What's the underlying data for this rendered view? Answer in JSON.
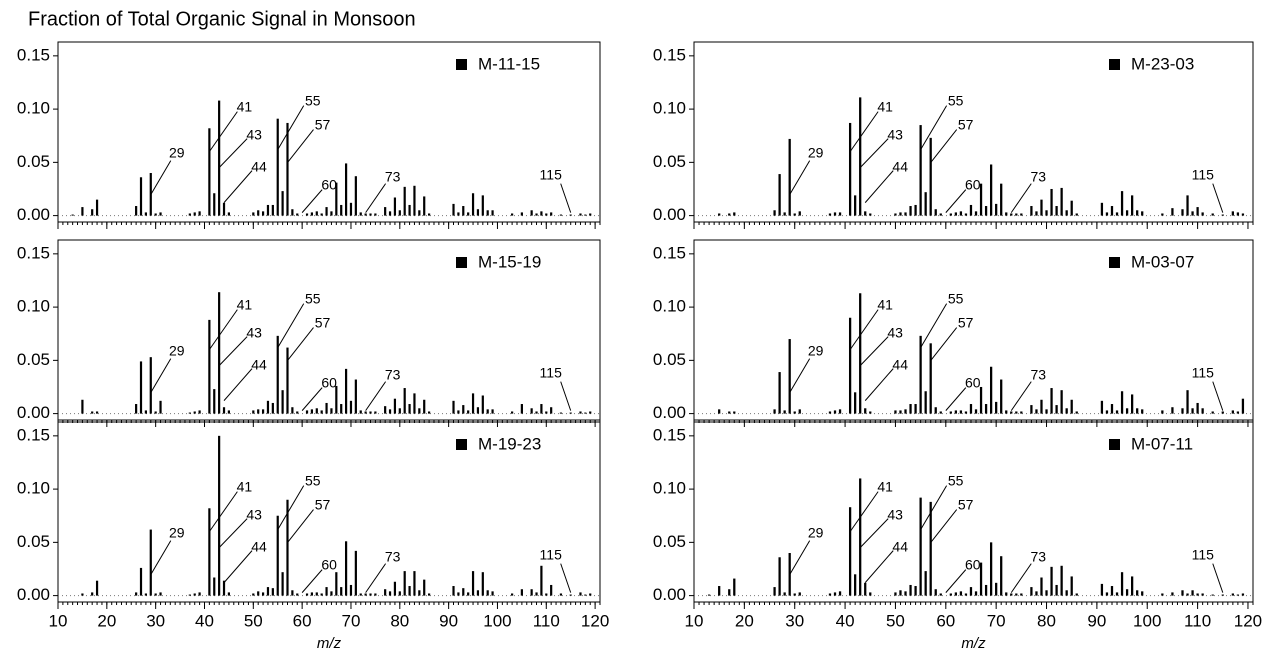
{
  "title": "Fraction of Total Organic Signal in Monsoon",
  "chart_data": [
    {
      "type": "bar",
      "name": "M-11-15",
      "color": "#000000",
      "x": [
        13,
        15,
        17,
        18,
        26,
        27,
        28,
        29,
        30,
        31,
        37,
        38,
        39,
        41,
        42,
        43,
        44,
        45,
        50,
        51,
        52,
        53,
        54,
        55,
        56,
        57,
        58,
        59,
        61,
        62,
        63,
        64,
        65,
        66,
        67,
        68,
        69,
        70,
        71,
        72,
        73,
        74,
        75,
        77,
        78,
        79,
        80,
        81,
        82,
        83,
        84,
        85,
        86,
        91,
        92,
        93,
        94,
        95,
        96,
        97,
        98,
        99,
        103,
        105,
        107,
        108,
        109,
        110,
        111,
        113,
        115,
        117,
        118,
        119
      ],
      "values": [
        0.001,
        0.008,
        0.006,
        0.015,
        0.009,
        0.036,
        0.003,
        0.04,
        0.002,
        0.003,
        0.002,
        0.003,
        0.004,
        0.082,
        0.021,
        0.108,
        0.012,
        0.003,
        0.003,
        0.005,
        0.004,
        0.01,
        0.01,
        0.091,
        0.023,
        0.087,
        0.006,
        0.002,
        0.002,
        0.003,
        0.004,
        0.002,
        0.008,
        0.004,
        0.031,
        0.01,
        0.049,
        0.012,
        0.037,
        0.003,
        0.002,
        0.002,
        0.002,
        0.008,
        0.004,
        0.017,
        0.005,
        0.027,
        0.01,
        0.028,
        0.005,
        0.018,
        0.002,
        0.011,
        0.003,
        0.009,
        0.003,
        0.021,
        0.006,
        0.019,
        0.005,
        0.005,
        0.002,
        0.003,
        0.005,
        0.002,
        0.004,
        0.002,
        0.003,
        0.001,
        0.001,
        0.002,
        0.001,
        0.002
      ],
      "annotations": [
        29,
        41,
        43,
        44,
        55,
        57,
        60,
        73,
        115
      ],
      "xlim": [
        10,
        121
      ],
      "xticks": [
        10,
        20,
        30,
        40,
        50,
        60,
        70,
        80,
        90,
        100,
        110,
        120
      ],
      "show_xtick_labels": false,
      "ylim": [
        -0.006,
        0.163
      ],
      "yticks": [
        {
          "value": 0,
          "label": "0.00"
        },
        {
          "value": 0.05,
          "label": "0.05"
        },
        {
          "value": 0.1,
          "label": "0.10"
        },
        {
          "value": 0.15,
          "label": "0.15"
        }
      ]
    },
    {
      "type": "bar",
      "name": "M-15-19",
      "color": "#000000",
      "x": [
        13,
        15,
        17,
        18,
        26,
        27,
        28,
        29,
        30,
        31,
        37,
        38,
        39,
        41,
        42,
        43,
        44,
        45,
        50,
        51,
        52,
        53,
        54,
        55,
        56,
        57,
        58,
        59,
        61,
        62,
        63,
        64,
        65,
        66,
        67,
        68,
        69,
        70,
        71,
        72,
        73,
        74,
        75,
        77,
        78,
        79,
        80,
        81,
        82,
        83,
        84,
        85,
        86,
        91,
        92,
        93,
        94,
        95,
        96,
        97,
        98,
        99,
        103,
        105,
        107,
        108,
        109,
        110,
        111,
        113,
        115,
        117,
        118,
        119
      ],
      "values": [
        0,
        0.013,
        0.002,
        0.002,
        0.009,
        0.049,
        0.003,
        0.053,
        0.002,
        0.012,
        0.001,
        0.002,
        0.003,
        0.088,
        0.023,
        0.114,
        0.006,
        0.003,
        0.003,
        0.004,
        0.004,
        0.012,
        0.01,
        0.073,
        0.022,
        0.062,
        0.006,
        0.002,
        0.003,
        0.004,
        0.005,
        0.003,
        0.01,
        0.005,
        0.026,
        0.009,
        0.042,
        0.012,
        0.032,
        0.003,
        0.002,
        0.002,
        0.002,
        0.007,
        0.004,
        0.014,
        0.005,
        0.024,
        0.009,
        0.019,
        0.005,
        0.013,
        0.002,
        0.012,
        0.003,
        0.008,
        0.003,
        0.019,
        0.006,
        0.017,
        0.004,
        0.004,
        0.002,
        0.009,
        0.005,
        0.002,
        0.009,
        0.002,
        0.006,
        0.001,
        0.001,
        0.002,
        0.001,
        0.002
      ],
      "annotations": [
        29,
        41,
        43,
        44,
        55,
        57,
        60,
        73,
        115
      ],
      "xlim": [
        10,
        121
      ],
      "xticks": [
        10,
        20,
        30,
        40,
        50,
        60,
        70,
        80,
        90,
        100,
        110,
        120
      ],
      "show_xtick_labels": false,
      "ylim": [
        -0.006,
        0.163
      ],
      "yticks": [
        {
          "value": 0,
          "label": "0.00"
        },
        {
          "value": 0.05,
          "label": "0.05"
        },
        {
          "value": 0.1,
          "label": "0.10"
        },
        {
          "value": 0.15,
          "label": "0.15"
        }
      ]
    },
    {
      "type": "bar",
      "name": "M-19-23",
      "color": "#000000",
      "xlabel": "m/z",
      "x": [
        13,
        15,
        17,
        18,
        26,
        27,
        28,
        29,
        30,
        31,
        37,
        38,
        39,
        41,
        42,
        43,
        44,
        45,
        50,
        51,
        52,
        53,
        54,
        55,
        56,
        57,
        58,
        59,
        61,
        62,
        63,
        64,
        65,
        66,
        67,
        68,
        69,
        70,
        71,
        72,
        73,
        74,
        75,
        77,
        78,
        79,
        80,
        81,
        82,
        83,
        84,
        85,
        86,
        91,
        92,
        93,
        94,
        95,
        96,
        97,
        98,
        99,
        103,
        105,
        107,
        108,
        109,
        110,
        111,
        113,
        115,
        117,
        118,
        119
      ],
      "values": [
        0,
        0.002,
        0.003,
        0.014,
        0.003,
        0.026,
        0.002,
        0.062,
        0.002,
        0.003,
        0.001,
        0.002,
        0.003,
        0.082,
        0.017,
        0.15,
        0.014,
        0.003,
        0.002,
        0.004,
        0.003,
        0.008,
        0.007,
        0.075,
        0.022,
        0.09,
        0.005,
        0.002,
        0.002,
        0.003,
        0.003,
        0.002,
        0.008,
        0.004,
        0.022,
        0.008,
        0.051,
        0.01,
        0.042,
        0.002,
        0.002,
        0.002,
        0.002,
        0.006,
        0.004,
        0.013,
        0.004,
        0.023,
        0.009,
        0.023,
        0.005,
        0.015,
        0.002,
        0.009,
        0.003,
        0.007,
        0.003,
        0.023,
        0.005,
        0.022,
        0.005,
        0.004,
        0.002,
        0.006,
        0.006,
        0.003,
        0.028,
        0.002,
        0.01,
        0.002,
        0.001,
        0.003,
        0.001,
        0.002
      ],
      "annotations": [
        29,
        41,
        43,
        44,
        55,
        57,
        60,
        73,
        115
      ],
      "xlim": [
        10,
        121
      ],
      "xticks": [
        10,
        20,
        30,
        40,
        50,
        60,
        70,
        80,
        90,
        100,
        110,
        120
      ],
      "show_xtick_labels": true,
      "ylim": [
        -0.006,
        0.163
      ],
      "yticks": [
        {
          "value": 0,
          "label": "0.00"
        },
        {
          "value": 0.05,
          "label": "0.05"
        },
        {
          "value": 0.1,
          "label": "0.10"
        },
        {
          "value": 0.15,
          "label": "0.15"
        }
      ]
    },
    {
      "type": "bar",
      "name": "M-23-03",
      "color": "#000000",
      "x": [
        13,
        15,
        17,
        18,
        26,
        27,
        28,
        29,
        30,
        31,
        37,
        38,
        39,
        41,
        42,
        43,
        44,
        45,
        50,
        51,
        52,
        53,
        54,
        55,
        56,
        57,
        58,
        59,
        61,
        62,
        63,
        64,
        65,
        66,
        67,
        68,
        69,
        70,
        71,
        72,
        73,
        74,
        75,
        77,
        78,
        79,
        80,
        81,
        82,
        83,
        84,
        85,
        86,
        91,
        92,
        93,
        94,
        95,
        96,
        97,
        98,
        99,
        103,
        105,
        107,
        108,
        109,
        110,
        111,
        113,
        115,
        117,
        118,
        119
      ],
      "values": [
        0,
        0.002,
        0.002,
        0.003,
        0.005,
        0.039,
        0.003,
        0.072,
        0.002,
        0.004,
        0.002,
        0.003,
        0.003,
        0.087,
        0.019,
        0.111,
        0.004,
        0.002,
        0.002,
        0.003,
        0.003,
        0.009,
        0.01,
        0.085,
        0.022,
        0.073,
        0.006,
        0.002,
        0.002,
        0.003,
        0.004,
        0.002,
        0.01,
        0.004,
        0.03,
        0.009,
        0.048,
        0.011,
        0.03,
        0.003,
        0.002,
        0.002,
        0.002,
        0.009,
        0.004,
        0.015,
        0.005,
        0.025,
        0.009,
        0.026,
        0.005,
        0.014,
        0.002,
        0.012,
        0.003,
        0.009,
        0.003,
        0.023,
        0.005,
        0.019,
        0.005,
        0.004,
        0.002,
        0.007,
        0.006,
        0.019,
        0.004,
        0.008,
        0.003,
        0.002,
        0.001,
        0.004,
        0.003,
        0.002
      ],
      "annotations": [
        29,
        41,
        43,
        44,
        55,
        57,
        60,
        73,
        115
      ],
      "xlim": [
        10,
        121
      ],
      "xticks": [
        10,
        20,
        30,
        40,
        50,
        60,
        70,
        80,
        90,
        100,
        110,
        120
      ],
      "show_xtick_labels": false,
      "ylim": [
        -0.006,
        0.163
      ],
      "yticks": [
        {
          "value": 0,
          "label": "0.00"
        },
        {
          "value": 0.05,
          "label": "0.05"
        },
        {
          "value": 0.1,
          "label": "0.10"
        },
        {
          "value": 0.15,
          "label": "0.15"
        }
      ]
    },
    {
      "type": "bar",
      "name": "M-03-07",
      "color": "#000000",
      "x": [
        13,
        15,
        17,
        18,
        26,
        27,
        28,
        29,
        30,
        31,
        37,
        38,
        39,
        41,
        42,
        43,
        44,
        45,
        50,
        51,
        52,
        53,
        54,
        55,
        56,
        57,
        58,
        59,
        61,
        62,
        63,
        64,
        65,
        66,
        67,
        68,
        69,
        70,
        71,
        72,
        73,
        74,
        75,
        77,
        78,
        79,
        80,
        81,
        82,
        83,
        84,
        85,
        86,
        91,
        92,
        93,
        94,
        95,
        96,
        97,
        98,
        99,
        103,
        105,
        107,
        108,
        109,
        110,
        111,
        113,
        115,
        117,
        118,
        119
      ],
      "values": [
        0,
        0.004,
        0.002,
        0.002,
        0.004,
        0.039,
        0.003,
        0.07,
        0.002,
        0.004,
        0.002,
        0.003,
        0.004,
        0.09,
        0.02,
        0.113,
        0.005,
        0.002,
        0.003,
        0.003,
        0.004,
        0.009,
        0.009,
        0.073,
        0.021,
        0.066,
        0.006,
        0.002,
        0.002,
        0.003,
        0.003,
        0.002,
        0.009,
        0.004,
        0.025,
        0.009,
        0.044,
        0.011,
        0.032,
        0.003,
        0.002,
        0.002,
        0.002,
        0.008,
        0.004,
        0.013,
        0.004,
        0.024,
        0.008,
        0.022,
        0.005,
        0.013,
        0.002,
        0.012,
        0.003,
        0.009,
        0.003,
        0.021,
        0.005,
        0.018,
        0.005,
        0.004,
        0.003,
        0.006,
        0.005,
        0.022,
        0.005,
        0.01,
        0.005,
        0.002,
        0.002,
        0.003,
        0.002,
        0.014
      ],
      "annotations": [
        29,
        41,
        43,
        44,
        55,
        57,
        60,
        73,
        115
      ],
      "xlim": [
        10,
        121
      ],
      "xticks": [
        10,
        20,
        30,
        40,
        50,
        60,
        70,
        80,
        90,
        100,
        110,
        120
      ],
      "show_xtick_labels": false,
      "ylim": [
        -0.006,
        0.163
      ],
      "yticks": [
        {
          "value": 0,
          "label": "0.00"
        },
        {
          "value": 0.05,
          "label": "0.05"
        },
        {
          "value": 0.1,
          "label": "0.10"
        },
        {
          "value": 0.15,
          "label": "0.15"
        }
      ]
    },
    {
      "type": "bar",
      "name": "M-07-11",
      "color": "#000000",
      "xlabel": "m/z",
      "x": [
        13,
        15,
        17,
        18,
        26,
        27,
        28,
        29,
        30,
        31,
        37,
        38,
        39,
        41,
        42,
        43,
        44,
        45,
        50,
        51,
        52,
        53,
        54,
        55,
        56,
        57,
        58,
        59,
        61,
        62,
        63,
        64,
        65,
        66,
        67,
        68,
        69,
        70,
        71,
        72,
        73,
        74,
        75,
        77,
        78,
        79,
        80,
        81,
        82,
        83,
        84,
        85,
        86,
        91,
        92,
        93,
        94,
        95,
        96,
        97,
        98,
        99,
        103,
        105,
        107,
        108,
        109,
        110,
        111,
        113,
        115,
        117,
        118,
        119
      ],
      "values": [
        0.001,
        0.009,
        0.006,
        0.016,
        0.008,
        0.036,
        0.003,
        0.04,
        0.002,
        0.003,
        0.002,
        0.003,
        0.004,
        0.083,
        0.02,
        0.11,
        0.012,
        0.003,
        0.003,
        0.005,
        0.004,
        0.01,
        0.009,
        0.092,
        0.023,
        0.088,
        0.006,
        0.002,
        0.002,
        0.003,
        0.004,
        0.002,
        0.008,
        0.004,
        0.031,
        0.01,
        0.05,
        0.012,
        0.037,
        0.003,
        0.002,
        0.002,
        0.002,
        0.008,
        0.004,
        0.017,
        0.005,
        0.027,
        0.01,
        0.028,
        0.005,
        0.018,
        0.002,
        0.011,
        0.003,
        0.009,
        0.003,
        0.022,
        0.006,
        0.018,
        0.005,
        0.004,
        0.002,
        0.003,
        0.005,
        0.002,
        0.005,
        0.002,
        0.002,
        0.001,
        0.001,
        0.002,
        0.001,
        0.002
      ],
      "annotations": [
        29,
        41,
        43,
        44,
        55,
        57,
        60,
        73,
        115
      ],
      "xlim": [
        10,
        121
      ],
      "xticks": [
        10,
        20,
        30,
        40,
        50,
        60,
        70,
        80,
        90,
        100,
        110,
        120
      ],
      "show_xtick_labels": true,
      "ylim": [
        -0.006,
        0.163
      ],
      "yticks": [
        {
          "value": 0,
          "label": "0.00"
        },
        {
          "value": 0.05,
          "label": "0.05"
        },
        {
          "value": 0.1,
          "label": "0.10"
        },
        {
          "value": 0.15,
          "label": "0.15"
        }
      ]
    }
  ]
}
